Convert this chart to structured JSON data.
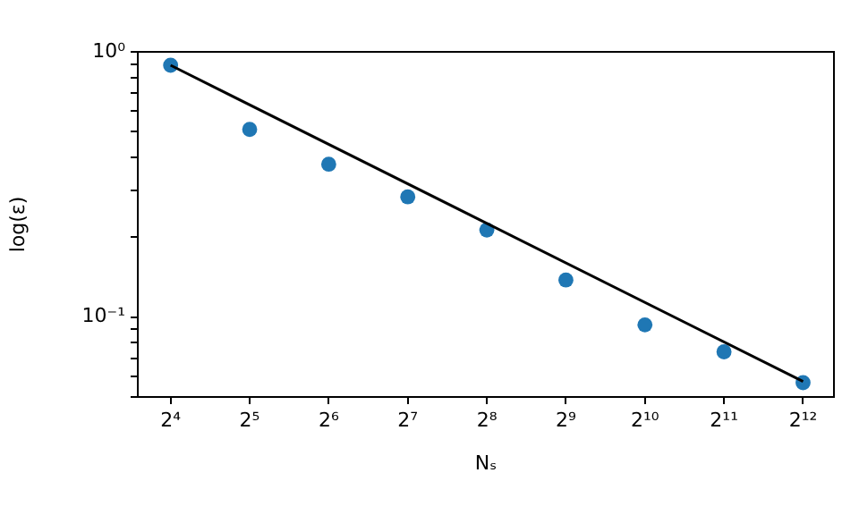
{
  "chart_data": {
    "type": "scatter",
    "xlabel": "Nₛ",
    "ylabel": "log(ε)",
    "log": "xy",
    "grid": false,
    "legend": false,
    "marker": "circle",
    "xlim": [
      12,
      5370
    ],
    "xticks": [
      {
        "value": 16,
        "label": "2⁴"
      },
      {
        "value": 32,
        "label": "2⁵"
      },
      {
        "value": 64,
        "label": "2⁶"
      },
      {
        "value": 128,
        "label": "2⁷"
      },
      {
        "value": 256,
        "label": "2⁸"
      },
      {
        "value": 512,
        "label": "2⁹"
      },
      {
        "value": 1024,
        "label": "2¹⁰"
      },
      {
        "value": 2048,
        "label": "2¹¹"
      },
      {
        "value": 4096,
        "label": "2¹²"
      }
    ],
    "ylim": [
      0.05,
      1.0
    ],
    "yticks": [
      {
        "value": 0.05,
        "label": null
      },
      {
        "value": 0.06,
        "label": null
      },
      {
        "value": 0.07,
        "label": null
      },
      {
        "value": 0.08,
        "label": null
      },
      {
        "value": 0.09,
        "label": null
      },
      {
        "value": 0.1,
        "label": "10⁻¹"
      },
      {
        "value": 0.2,
        "label": null
      },
      {
        "value": 0.3,
        "label": null
      },
      {
        "value": 0.4,
        "label": null
      },
      {
        "value": 0.5,
        "label": null
      },
      {
        "value": 0.6,
        "label": null
      },
      {
        "value": 0.7,
        "label": null
      },
      {
        "value": 0.8,
        "label": null
      },
      {
        "value": 0.9,
        "label": null
      },
      {
        "value": 1,
        "label": "10⁰"
      }
    ],
    "series": [
      {
        "type": "scatter",
        "color": "#1f77b4",
        "x": [
          16,
          32,
          64,
          128,
          256,
          512,
          1024,
          2048,
          4096
        ],
        "values": [
          0.89,
          0.51,
          0.377,
          0.284,
          0.213,
          0.138,
          0.0935,
          0.074,
          0.0566
        ]
      },
      {
        "type": "line",
        "color": "#000000",
        "marker": "none",
        "x": [
          16,
          4096
        ],
        "values": [
          0.89,
          0.0572
        ]
      }
    ]
  }
}
